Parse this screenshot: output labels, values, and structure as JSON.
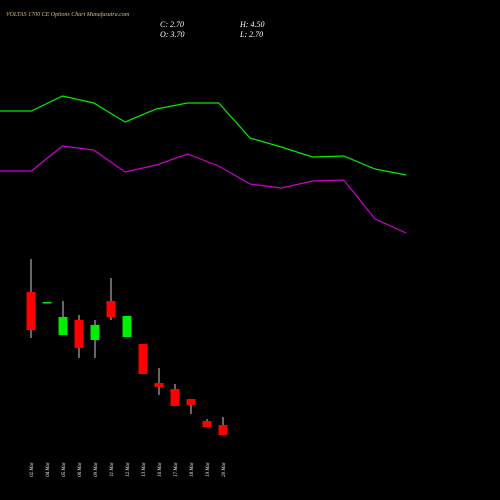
{
  "chart_data": [
    {
      "type": "line",
      "title": "VOLTAS 1700  CE Options  Chart Munafasutra.com",
      "ylim": [
        0,
        100
      ],
      "series": [
        {
          "color": "#00ee00",
          "values": [
            69.5,
            69.5,
            77,
            73.5,
            64,
            70.5,
            73.5,
            73.5,
            56,
            51.5,
            46.5,
            47,
            40.5,
            37.5
          ]
        },
        {
          "color": "#cc00cc",
          "values": [
            39.5,
            39.5,
            52,
            50,
            39,
            42.5,
            48,
            42,
            33,
            31,
            34.5,
            35,
            15.5,
            8.5
          ]
        }
      ]
    },
    {
      "type": "candlestick",
      "labels": {
        "close": "C: 2.70",
        "high": "H: 4.50",
        "open": "O: 3.70",
        "low": "L: 2.70"
      },
      "categories": [
        "02 Mar",
        "04 Mar",
        "05 Mar",
        "06 Mar",
        "09 Mar",
        "11 Mar",
        "12 Mar",
        "13 Mar",
        "16 Mar",
        "17 Mar",
        "18 Mar",
        "19 Mar",
        "20 Mar"
      ],
      "open": [
        17.0,
        15.9,
        12.7,
        14.2,
        12.2,
        16.1,
        12.5,
        11.8,
        7.9,
        7.3,
        6.3,
        4.1,
        3.7
      ],
      "high": [
        20.3,
        16.0,
        16.1,
        14.7,
        14.2,
        18.4,
        14.6,
        11.8,
        9.4,
        7.8,
        6.3,
        4.3,
        4.5
      ],
      "low": [
        12.4,
        15.9,
        12.7,
        10.4,
        10.4,
        14.2,
        12.5,
        8.8,
        6.7,
        5.6,
        4.8,
        3.5,
        2.7
      ],
      "close": [
        13.2,
        16.0,
        14.5,
        11.4,
        13.7,
        14.5,
        14.6,
        8.8,
        7.5,
        5.6,
        5.7,
        3.5,
        2.7
      ],
      "up_color": "#00ee00",
      "down_color": "#ff0000",
      "ylim": [
        0,
        25
      ]
    }
  ]
}
